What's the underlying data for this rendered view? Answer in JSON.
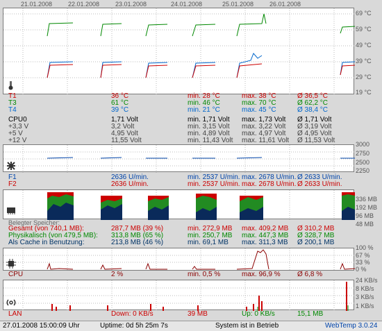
{
  "dates": [
    "21.01.2008",
    "22.01.2008",
    "23.01.2008",
    "24.01.2008",
    "25.01.2008",
    "26.01.2008"
  ],
  "temp_axis": [
    "69 °C",
    "59 °C",
    "49 °C",
    "39 °C",
    "29 °C",
    "19 °C"
  ],
  "fan_axis": [
    "3000",
    "2750",
    "2500",
    "2250"
  ],
  "mem_axis": [
    "336 MB",
    "192 MB",
    "96 MB",
    "48 MB"
  ],
  "cpu_axis": [
    "100 %",
    "67 %",
    "33 %",
    "0 %"
  ],
  "lan_axis": [
    "24 KB/s",
    "8 KB/s",
    "3 KB/s",
    "1 KB/s"
  ],
  "temps": [
    {
      "name": "T1",
      "value": "36 °C",
      "min": "min. 28 °C",
      "max": "max. 38 °C",
      "avg": "Ø 36,5 °C",
      "color": "#cc0000"
    },
    {
      "name": "T3",
      "value": "61 °C",
      "min": "min. 46 °C",
      "max": "max. 70 °C",
      "avg": "Ø 62,2 °C",
      "color": "#008800"
    },
    {
      "name": "T4",
      "value": "39 °C",
      "min": "min. 21 °C",
      "max": "max. 45 °C",
      "avg": "Ø 38,4 °C",
      "color": "#0066cc"
    }
  ],
  "volts": [
    {
      "name": "CPU0",
      "value": "1,71 Volt",
      "min": "min. 1,71 Volt",
      "max": "max. 1,73 Volt",
      "avg": "Ø 1,71 Volt"
    },
    {
      "name": "+3,3 V",
      "value": "3,2 Volt",
      "min": "min. 3,15 Volt",
      "max": "max. 3,22 Volt",
      "avg": "Ø 3,19 Volt"
    },
    {
      "name": "+5 V",
      "value": "4,95 Volt",
      "min": "min. 4,89 Volt",
      "max": "max. 4,97 Volt",
      "avg": "Ø 4,95 Volt"
    },
    {
      "name": "+12 V",
      "value": "11,55 Volt",
      "min": "min. 11,43 Volt",
      "max": "max. 11,61 Volt",
      "avg": "Ø 11,53 Volt"
    }
  ],
  "fans": [
    {
      "name": "F1",
      "value": "2636 U/min.",
      "min": "min. 2537 U/min.",
      "max": "max. 2678 U/min.",
      "avg": "Ø 2633 U/min.",
      "color": "#0044aa"
    },
    {
      "name": "F2",
      "value": "2636 U/min.",
      "min": "min. 2537 U/min.",
      "max": "max. 2678 U/min.",
      "avg": "Ø 2633 U/min.",
      "color": "#cc0000"
    }
  ],
  "mem_title": "Belegter Speicher:",
  "mem": [
    {
      "name": "Gesamt (von 740,1 MB):",
      "value": "287,7 MB (39 %)",
      "min": "min. 272,9 MB",
      "max": "max. 409,2 MB",
      "avg": "Ø 310,2 MB",
      "color": "#cc0000"
    },
    {
      "name": "Physikalisch (von 479,5 MB):",
      "value": "313,8 MB (65 %)",
      "min": "min. 250,7 MB",
      "max": "max. 447,3 MB",
      "avg": "Ø 328,7 MB",
      "color": "#008800"
    },
    {
      "name": "Als Cache in Benutzung:",
      "value": "213,8 MB (46 %)",
      "min": "min. 69,1 MB",
      "max": "max. 311,3 MB",
      "avg": "Ø 200,1 MB",
      "color": "#003366"
    }
  ],
  "cpu": {
    "name": "CPU",
    "value": "2 %",
    "min": "min. 0,5 %",
    "max": "max. 96,9 %",
    "avg": "Ø 6,8 %"
  },
  "lan": {
    "name": "LAN",
    "down": "Down: 0 KB/s",
    "total": "39 MB",
    "up": "Up: 0 KB/s",
    "total2": "15,1 MB"
  },
  "status": {
    "datetime": "27.01.2008 15:00:09 Uhr",
    "uptime": "Uptime: 0d 5h 25m 7s",
    "state": "System ist in Betrieb",
    "brand": "WebTemp 3.0.24"
  }
}
